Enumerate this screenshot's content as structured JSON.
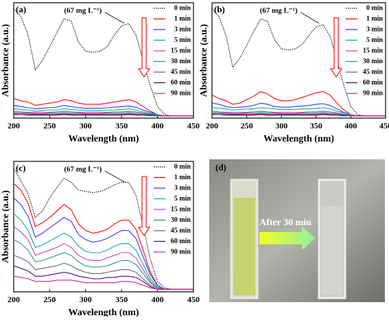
{
  "chart_data": [
    {
      "type": "line",
      "panel": "(a)",
      "annotation": "(67 mg L⁻¹)",
      "xlabel": "Wavelength (nm)",
      "ylabel": "Absorbance (a.u.)",
      "x": [
        200,
        210,
        220,
        230,
        240,
        250,
        260,
        270,
        280,
        290,
        300,
        310,
        320,
        330,
        340,
        350,
        360,
        370,
        380,
        390,
        400,
        410,
        420,
        450
      ],
      "xlim": [
        200,
        450
      ],
      "xticks": [
        200,
        250,
        300,
        350,
        400,
        450
      ],
      "ylim": [
        0,
        1
      ],
      "series": [
        {
          "name": "0 min",
          "color": "#000000",
          "line_style": "dotted",
          "values": [
            0.95,
            0.88,
            0.72,
            0.42,
            0.5,
            0.62,
            0.74,
            0.86,
            0.84,
            0.66,
            0.58,
            0.57,
            0.58,
            0.62,
            0.72,
            0.8,
            0.82,
            0.72,
            0.5,
            0.28,
            0.1,
            0.03,
            0.02,
            0.02
          ]
        },
        {
          "name": "1 min",
          "color": "#ff0000",
          "values": [
            0.17,
            0.15,
            0.14,
            0.11,
            0.12,
            0.13,
            0.14,
            0.16,
            0.15,
            0.13,
            0.12,
            0.12,
            0.12,
            0.13,
            0.14,
            0.15,
            0.16,
            0.14,
            0.1,
            0.06,
            0.03,
            0.02,
            0.02,
            0.02
          ]
        },
        {
          "name": "3 min",
          "color": "#3333ff",
          "values": [
            0.11,
            0.1,
            0.09,
            0.08,
            0.085,
            0.09,
            0.095,
            0.11,
            0.1,
            0.09,
            0.085,
            0.085,
            0.085,
            0.09,
            0.095,
            0.1,
            0.105,
            0.095,
            0.07,
            0.05,
            0.03,
            0.02,
            0.02,
            0.02
          ]
        },
        {
          "name": "5 min",
          "color": "#00b0a0",
          "values": [
            0.08,
            0.075,
            0.07,
            0.06,
            0.065,
            0.07,
            0.07,
            0.08,
            0.075,
            0.07,
            0.065,
            0.065,
            0.065,
            0.07,
            0.07,
            0.075,
            0.08,
            0.07,
            0.055,
            0.04,
            0.03,
            0.02,
            0.02,
            0.02
          ]
        },
        {
          "name": "15 min",
          "color": "#c040c0",
          "values": [
            0.06,
            0.055,
            0.05,
            0.05,
            0.05,
            0.05,
            0.055,
            0.06,
            0.055,
            0.05,
            0.05,
            0.05,
            0.05,
            0.05,
            0.055,
            0.055,
            0.06,
            0.055,
            0.045,
            0.035,
            0.025,
            0.02,
            0.02,
            0.02
          ]
        },
        {
          "name": "30 min",
          "color": "#20a060",
          "values": [
            0.05,
            0.045,
            0.045,
            0.04,
            0.04,
            0.045,
            0.045,
            0.05,
            0.045,
            0.045,
            0.04,
            0.04,
            0.04,
            0.045,
            0.045,
            0.045,
            0.05,
            0.045,
            0.04,
            0.03,
            0.025,
            0.02,
            0.02,
            0.02
          ]
        },
        {
          "name": "45 min",
          "color": "#606080",
          "values": [
            0.04,
            0.04,
            0.035,
            0.035,
            0.035,
            0.035,
            0.035,
            0.04,
            0.035,
            0.035,
            0.035,
            0.035,
            0.035,
            0.035,
            0.035,
            0.035,
            0.04,
            0.035,
            0.03,
            0.025,
            0.02,
            0.02,
            0.02,
            0.02
          ]
        },
        {
          "name": "60 min",
          "color": "#4b0082",
          "values": [
            0.035,
            0.03,
            0.03,
            0.03,
            0.03,
            0.03,
            0.03,
            0.035,
            0.03,
            0.03,
            0.03,
            0.03,
            0.03,
            0.03,
            0.03,
            0.03,
            0.035,
            0.03,
            0.03,
            0.025,
            0.02,
            0.02,
            0.02,
            0.02
          ]
        },
        {
          "name": "90 min",
          "color": "#d02090",
          "values": [
            0.03,
            0.03,
            0.025,
            0.025,
            0.025,
            0.025,
            0.025,
            0.03,
            0.025,
            0.025,
            0.025,
            0.025,
            0.025,
            0.025,
            0.025,
            0.025,
            0.03,
            0.025,
            0.025,
            0.02,
            0.02,
            0.02,
            0.02,
            0.02
          ]
        }
      ]
    },
    {
      "type": "line",
      "panel": "(b)",
      "annotation": "(67 mg L⁻¹)",
      "xlabel": "Wavelength (nm)",
      "ylabel": "Absorbance (a.u.)",
      "x": [
        200,
        210,
        220,
        230,
        240,
        250,
        260,
        270,
        280,
        290,
        300,
        310,
        320,
        330,
        340,
        350,
        360,
        370,
        380,
        390,
        400,
        410,
        420,
        450
      ],
      "xlim": [
        200,
        450
      ],
      "xticks": [
        200,
        250,
        300,
        350,
        400,
        450
      ],
      "ylim": [
        0,
        1
      ],
      "series": [
        {
          "name": "0 min",
          "color": "#000000",
          "line_style": "dotted",
          "values": [
            0.95,
            0.88,
            0.72,
            0.44,
            0.52,
            0.63,
            0.75,
            0.86,
            0.84,
            0.68,
            0.6,
            0.59,
            0.6,
            0.64,
            0.72,
            0.79,
            0.81,
            0.71,
            0.5,
            0.28,
            0.1,
            0.03,
            0.02,
            0.02
          ]
        },
        {
          "name": "1 min",
          "color": "#ff0000",
          "values": [
            0.2,
            0.17,
            0.15,
            0.12,
            0.13,
            0.16,
            0.19,
            0.23,
            0.21,
            0.17,
            0.15,
            0.15,
            0.16,
            0.18,
            0.2,
            0.22,
            0.23,
            0.2,
            0.13,
            0.07,
            0.03,
            0.02,
            0.02,
            0.02
          ]
        },
        {
          "name": "3 min",
          "color": "#3333ff",
          "values": [
            0.13,
            0.12,
            0.1,
            0.09,
            0.095,
            0.1,
            0.11,
            0.13,
            0.12,
            0.1,
            0.095,
            0.095,
            0.1,
            0.105,
            0.11,
            0.12,
            0.125,
            0.11,
            0.08,
            0.05,
            0.03,
            0.02,
            0.02,
            0.02
          ]
        },
        {
          "name": "5 min",
          "color": "#00b0a0",
          "values": [
            0.09,
            0.085,
            0.08,
            0.07,
            0.075,
            0.08,
            0.08,
            0.09,
            0.085,
            0.08,
            0.075,
            0.075,
            0.075,
            0.08,
            0.08,
            0.085,
            0.09,
            0.08,
            0.06,
            0.045,
            0.03,
            0.02,
            0.02,
            0.02
          ]
        },
        {
          "name": "15 min",
          "color": "#c040c0",
          "values": [
            0.06,
            0.055,
            0.05,
            0.05,
            0.05,
            0.05,
            0.055,
            0.06,
            0.055,
            0.05,
            0.05,
            0.05,
            0.05,
            0.05,
            0.055,
            0.055,
            0.06,
            0.055,
            0.045,
            0.035,
            0.025,
            0.02,
            0.02,
            0.02
          ]
        },
        {
          "name": "30 min",
          "color": "#20a060",
          "values": [
            0.05,
            0.045,
            0.045,
            0.04,
            0.04,
            0.045,
            0.045,
            0.05,
            0.045,
            0.045,
            0.04,
            0.04,
            0.04,
            0.045,
            0.045,
            0.045,
            0.05,
            0.045,
            0.04,
            0.03,
            0.025,
            0.02,
            0.02,
            0.02
          ]
        },
        {
          "name": "45 min",
          "color": "#606080",
          "values": [
            0.04,
            0.04,
            0.035,
            0.035,
            0.035,
            0.035,
            0.035,
            0.04,
            0.035,
            0.035,
            0.035,
            0.035,
            0.035,
            0.035,
            0.035,
            0.035,
            0.04,
            0.035,
            0.03,
            0.025,
            0.02,
            0.02,
            0.02,
            0.02
          ]
        },
        {
          "name": "60 min",
          "color": "#4b0082",
          "values": [
            0.035,
            0.03,
            0.03,
            0.03,
            0.03,
            0.03,
            0.03,
            0.035,
            0.03,
            0.03,
            0.03,
            0.03,
            0.03,
            0.03,
            0.03,
            0.03,
            0.035,
            0.03,
            0.03,
            0.025,
            0.02,
            0.02,
            0.02,
            0.02
          ]
        },
        {
          "name": "90 min",
          "color": "#d02090",
          "values": [
            0.03,
            0.03,
            0.025,
            0.025,
            0.025,
            0.025,
            0.025,
            0.03,
            0.025,
            0.025,
            0.025,
            0.025,
            0.025,
            0.025,
            0.025,
            0.025,
            0.03,
            0.025,
            0.025,
            0.02,
            0.02,
            0.02,
            0.02,
            0.02
          ]
        }
      ]
    },
    {
      "type": "line",
      "panel": "(c)",
      "annotation": "(67 mg L⁻¹)",
      "xlabel": "Wavelength (nm)",
      "ylabel": "Absorbance (a.u.)",
      "x": [
        200,
        210,
        220,
        230,
        240,
        250,
        260,
        270,
        280,
        290,
        300,
        310,
        320,
        330,
        340,
        350,
        360,
        370,
        380,
        390,
        400,
        410,
        420,
        450
      ],
      "xlim": [
        200,
        450
      ],
      "xticks": [
        200,
        250,
        300,
        350,
        400,
        450
      ],
      "ylim": [
        0,
        1
      ],
      "series": [
        {
          "name": "0 min",
          "color": "#000000",
          "line_style": "dotted",
          "values": [
            0.95,
            0.85,
            0.75,
            0.57,
            0.62,
            0.72,
            0.8,
            0.87,
            0.84,
            0.78,
            0.77,
            0.76,
            0.77,
            0.79,
            0.82,
            0.84,
            0.84,
            0.74,
            0.5,
            0.25,
            0.08,
            0.03,
            0.02,
            0.02
          ]
        },
        {
          "name": "1 min",
          "color": "#ff0000",
          "values": [
            0.83,
            0.78,
            0.68,
            0.5,
            0.53,
            0.57,
            0.62,
            0.67,
            0.63,
            0.52,
            0.47,
            0.45,
            0.46,
            0.48,
            0.52,
            0.55,
            0.55,
            0.48,
            0.32,
            0.15,
            0.05,
            0.02,
            0.02,
            0.02
          ]
        },
        {
          "name": "3 min",
          "color": "#3333ff",
          "values": [
            0.72,
            0.67,
            0.58,
            0.42,
            0.45,
            0.49,
            0.53,
            0.57,
            0.54,
            0.44,
            0.4,
            0.38,
            0.39,
            0.41,
            0.44,
            0.47,
            0.47,
            0.41,
            0.27,
            0.13,
            0.05,
            0.02,
            0.02,
            0.02
          ]
        },
        {
          "name": "5 min",
          "color": "#00b0a0",
          "values": [
            0.6,
            0.55,
            0.47,
            0.34,
            0.36,
            0.39,
            0.42,
            0.45,
            0.42,
            0.35,
            0.31,
            0.3,
            0.3,
            0.32,
            0.35,
            0.37,
            0.37,
            0.32,
            0.21,
            0.1,
            0.04,
            0.02,
            0.02,
            0.02
          ]
        },
        {
          "name": "15 min",
          "color": "#c040c0",
          "values": [
            0.5,
            0.46,
            0.4,
            0.28,
            0.3,
            0.32,
            0.34,
            0.37,
            0.34,
            0.28,
            0.25,
            0.24,
            0.24,
            0.26,
            0.28,
            0.3,
            0.3,
            0.26,
            0.17,
            0.08,
            0.03,
            0.02,
            0.02,
            0.02
          ]
        },
        {
          "name": "30 min",
          "color": "#20a060",
          "values": [
            0.4,
            0.37,
            0.32,
            0.23,
            0.24,
            0.26,
            0.28,
            0.3,
            0.28,
            0.23,
            0.2,
            0.19,
            0.19,
            0.2,
            0.22,
            0.24,
            0.24,
            0.21,
            0.14,
            0.07,
            0.03,
            0.02,
            0.02,
            0.02
          ]
        },
        {
          "name": "45 min",
          "color": "#606080",
          "values": [
            0.28,
            0.26,
            0.23,
            0.17,
            0.18,
            0.19,
            0.2,
            0.22,
            0.2,
            0.17,
            0.15,
            0.14,
            0.14,
            0.15,
            0.16,
            0.17,
            0.17,
            0.15,
            0.1,
            0.05,
            0.03,
            0.02,
            0.02,
            0.02
          ]
        },
        {
          "name": "60 min",
          "color": "#4b0082",
          "values": [
            0.2,
            0.18,
            0.16,
            0.12,
            0.12,
            0.13,
            0.14,
            0.15,
            0.14,
            0.12,
            0.11,
            0.1,
            0.1,
            0.11,
            0.11,
            0.12,
            0.12,
            0.11,
            0.08,
            0.04,
            0.02,
            0.02,
            0.02,
            0.02
          ]
        },
        {
          "name": "90 min",
          "color": "#d02090",
          "values": [
            0.12,
            0.11,
            0.1,
            0.08,
            0.08,
            0.08,
            0.09,
            0.09,
            0.09,
            0.08,
            0.07,
            0.07,
            0.07,
            0.07,
            0.07,
            0.08,
            0.08,
            0.07,
            0.05,
            0.03,
            0.02,
            0.02,
            0.02,
            0.02
          ]
        }
      ]
    }
  ],
  "photo": {
    "label": "(d)",
    "annotation": "After 30 min"
  }
}
